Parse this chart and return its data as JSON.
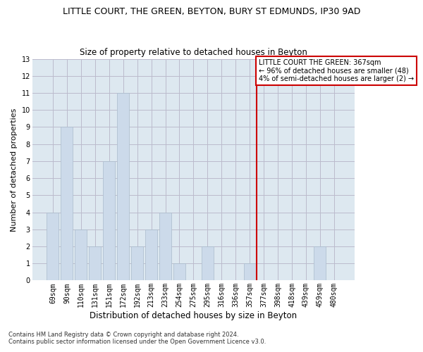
{
  "title": "LITTLE COURT, THE GREEN, BEYTON, BURY ST EDMUNDS, IP30 9AD",
  "subtitle": "Size of property relative to detached houses in Beyton",
  "xlabel": "Distribution of detached houses by size in Beyton",
  "ylabel": "Number of detached properties",
  "categories": [
    "69sqm",
    "90sqm",
    "110sqm",
    "131sqm",
    "151sqm",
    "172sqm",
    "192sqm",
    "213sqm",
    "233sqm",
    "254sqm",
    "275sqm",
    "295sqm",
    "316sqm",
    "336sqm",
    "357sqm",
    "377sqm",
    "398sqm",
    "418sqm",
    "439sqm",
    "459sqm",
    "480sqm"
  ],
  "values": [
    4,
    9,
    3,
    2,
    7,
    11,
    2,
    3,
    4,
    1,
    0,
    2,
    0,
    0,
    1,
    0,
    0,
    0,
    0,
    2,
    0
  ],
  "bar_color": "#ccdaea",
  "bar_edge_color": "#aabccc",
  "grid_color": "#bbbbcc",
  "bg_color": "#dde8f0",
  "red_line_x": 14.5,
  "annotation_text": "LITTLE COURT THE GREEN: 367sqm\n← 96% of detached houses are smaller (48)\n4% of semi-detached houses are larger (2) →",
  "annotation_box_color": "#ffffff",
  "annotation_box_edge": "#cc0000",
  "footnote1": "Contains HM Land Registry data © Crown copyright and database right 2024.",
  "footnote2": "Contains public sector information licensed under the Open Government Licence v3.0.",
  "ylim": [
    0,
    13
  ],
  "yticks": [
    0,
    1,
    2,
    3,
    4,
    5,
    6,
    7,
    8,
    9,
    10,
    11,
    12,
    13
  ],
  "title_fontsize": 9,
  "subtitle_fontsize": 8.5,
  "ylabel_fontsize": 8,
  "xlabel_fontsize": 8.5,
  "tick_fontsize": 7,
  "annot_fontsize": 7,
  "footnote_fontsize": 6
}
